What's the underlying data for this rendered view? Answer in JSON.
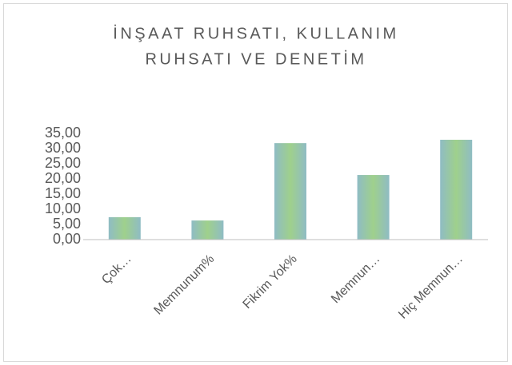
{
  "chart_data": {
    "type": "bar",
    "title": [
      "İNŞAAT RUHSATI, KULLANIM",
      "RUHSATI VE DENETİM"
    ],
    "categories": [
      "Çok…",
      "Memnunum%",
      "Fikrim Yok%",
      "Memnun…",
      "Hiç Memnun…"
    ],
    "values": [
      7.4,
      6.3,
      31.8,
      21.3,
      32.9
    ],
    "color": "#9fd08c",
    "ylim": [
      0,
      35
    ],
    "yticks": [
      {
        "value": 0,
        "label": "0,00"
      },
      {
        "value": 5,
        "label": "5,00"
      },
      {
        "value": 10,
        "label": "10,00"
      },
      {
        "value": 15,
        "label": "15,00"
      },
      {
        "value": 20,
        "label": "20,00"
      },
      {
        "value": 25,
        "label": "25,00"
      },
      {
        "value": 30,
        "label": "30,00"
      },
      {
        "value": 35,
        "label": "35,00"
      }
    ],
    "grid": false
  }
}
